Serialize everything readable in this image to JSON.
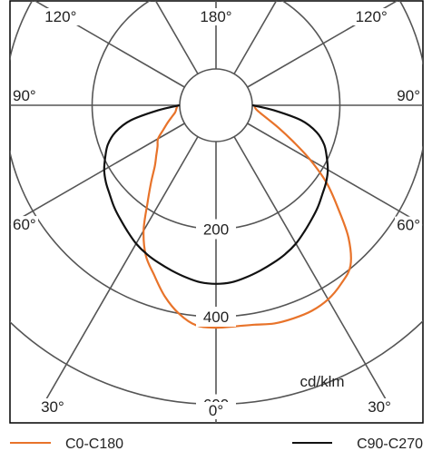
{
  "chart_data": {
    "type": "polar",
    "unit": "cd/klm",
    "radial_ticks": [
      200,
      400,
      600
    ],
    "radial_max": 720,
    "angle_labels": [
      {
        "text": "0°",
        "angle": 0,
        "side": "center"
      },
      {
        "text": "30°",
        "angle": 30,
        "side": "left"
      },
      {
        "text": "30°",
        "angle": 30,
        "side": "right"
      },
      {
        "text": "60°",
        "angle": 60,
        "side": "left"
      },
      {
        "text": "60°",
        "angle": 60,
        "side": "right"
      },
      {
        "text": "90°",
        "angle": 90,
        "side": "left"
      },
      {
        "text": "90°",
        "angle": 90,
        "side": "right"
      },
      {
        "text": "120°",
        "angle": 120,
        "side": "left"
      },
      {
        "text": "120°",
        "angle": 120,
        "side": "right"
      },
      {
        "text": "180°",
        "angle": 180,
        "side": "center"
      }
    ],
    "series": [
      {
        "name": "C0-C180",
        "color": "#e8732a",
        "angles": [
          -90,
          -85,
          -80,
          -75,
          -70,
          -65,
          -60,
          -55,
          -50,
          -45,
          -40,
          -35,
          -30,
          -25,
          -20,
          -15,
          -10,
          -5,
          0,
          5,
          10,
          15,
          20,
          25,
          30,
          35,
          40,
          45,
          50,
          55,
          60,
          65,
          70,
          75,
          80,
          85,
          90
        ],
        "values": [
          5,
          8,
          12,
          22,
          35,
          50,
          70,
          80,
          95,
          115,
          148,
          190,
          248,
          296,
          330,
          369,
          401,
          422,
          425,
          424,
          426,
          433,
          435,
          435,
          429,
          415,
          395,
          345,
          280,
          225,
          165,
          110,
          70,
          40,
          20,
          8,
          5
        ]
      },
      {
        "name": "C90-C270",
        "color": "#111111",
        "angles": [
          -90,
          -85,
          -80,
          -75,
          -70,
          -65,
          -60,
          -55,
          -50,
          -45,
          -40,
          -35,
          -30,
          -25,
          -20,
          -15,
          -10,
          -5,
          0,
          5,
          10,
          15,
          20,
          25,
          30,
          35,
          40,
          45,
          50,
          55,
          60,
          65,
          70,
          75,
          80,
          85,
          90
        ],
        "values": [
          0,
          50,
          115,
          155,
          180,
          196,
          212,
          224,
          234,
          246,
          257,
          269,
          282,
          292,
          300,
          308,
          316,
          323,
          325,
          323,
          316,
          308,
          300,
          292,
          282,
          269,
          257,
          246,
          234,
          224,
          212,
          196,
          180,
          155,
          115,
          50,
          0
        ]
      }
    ]
  },
  "legend": [
    {
      "label": "C0-C180",
      "color": "#e8732a"
    },
    {
      "label": "C90-C270",
      "color": "#111111"
    }
  ]
}
